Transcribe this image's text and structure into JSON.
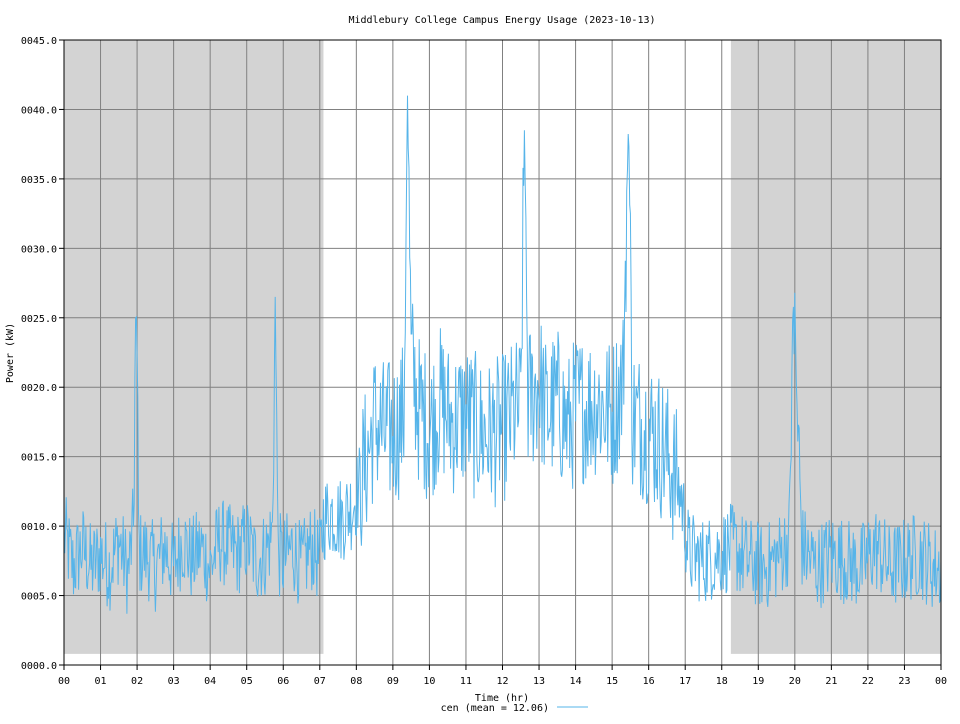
{
  "chart_data": {
    "type": "line",
    "title": "Middlebury College Campus Energy Usage (2023-10-13)",
    "xlabel": "Time (hr)",
    "ylabel": "Power (kW)",
    "xlim": [
      0,
      24
    ],
    "ylim": [
      0,
      45
    ],
    "x_tick_labels": [
      "00",
      "01",
      "02",
      "03",
      "04",
      "05",
      "06",
      "07",
      "08",
      "09",
      "10",
      "11",
      "12",
      "13",
      "14",
      "15",
      "16",
      "17",
      "18",
      "19",
      "20",
      "21",
      "22",
      "23",
      "00"
    ],
    "y_tick_labels": [
      "0000.0",
      "0005.0",
      "0010.0",
      "0015.0",
      "0020.0",
      "0025.0",
      "0030.0",
      "0035.0",
      "0040.0",
      "0045.0"
    ],
    "grid": true,
    "legend_position": "bottom-center",
    "shaded_regions": [
      {
        "x_start": 0.0,
        "x_end": 7.1,
        "y_start": 0.8,
        "y_end": 45
      },
      {
        "x_start": 18.25,
        "x_end": 24.0,
        "y_start": 0.8,
        "y_end": 45
      }
    ],
    "series": [
      {
        "name": "cen",
        "legend_label": "cen (mean = 12.06)",
        "color": "#56b4e9",
        "x": [
          0,
          0.25,
          0.5,
          0.75,
          1,
          1.25,
          1.5,
          1.75,
          1.9,
          1.97,
          2.05,
          2.25,
          2.5,
          2.75,
          3,
          3.25,
          3.5,
          3.75,
          4,
          4.25,
          4.5,
          4.75,
          5,
          5.25,
          5.5,
          5.7,
          5.78,
          5.86,
          6,
          6.25,
          6.5,
          6.75,
          7,
          7.1,
          7.3,
          7.6,
          7.9,
          8.1,
          8.3,
          8.5,
          8.8,
          9.1,
          9.3,
          9.4,
          9.5,
          9.7,
          10,
          10.3,
          10.6,
          11,
          11.3,
          11.6,
          12,
          12.3,
          12.5,
          12.6,
          12.7,
          12.85,
          13,
          13.2,
          13.5,
          13.8,
          14,
          14.3,
          14.6,
          15,
          15.3,
          15.45,
          15.55,
          15.7,
          16,
          16.3,
          16.6,
          16.9,
          17.1,
          17.5,
          17.9,
          18.3,
          18.7,
          19.2,
          19.6,
          19.85,
          19.95,
          20.2,
          20.6,
          21,
          21.4,
          21.8,
          22.2,
          22.6,
          23,
          23.4,
          23.8,
          24
        ],
        "values": [
          9.5,
          7,
          8.5,
          7,
          8,
          7,
          9,
          6.5,
          10,
          27.5,
          8,
          8,
          7,
          8.5,
          7,
          9,
          7.5,
          8.5,
          7,
          9,
          8.5,
          8,
          9,
          7.5,
          8,
          9.5,
          26.5,
          8,
          7.5,
          8.5,
          7,
          8.5,
          7.5,
          10.5,
          11,
          10.5,
          11.5,
          13,
          15,
          17.5,
          16.5,
          17,
          18,
          41,
          22,
          18.5,
          17,
          19,
          17.5,
          18,
          17,
          16.5,
          17,
          18,
          18.5,
          38.5,
          19,
          19.5,
          20.5,
          18,
          19,
          17,
          18.5,
          18.5,
          19,
          18,
          20.5,
          39.5,
          18,
          17.5,
          17,
          16,
          14.5,
          12,
          8,
          7.5,
          8,
          8.5,
          7.5,
          7,
          8,
          9,
          26.5,
          8.5,
          7,
          8,
          7.5,
          7,
          8.5,
          7,
          7.5,
          8,
          7,
          7
        ]
      }
    ]
  }
}
